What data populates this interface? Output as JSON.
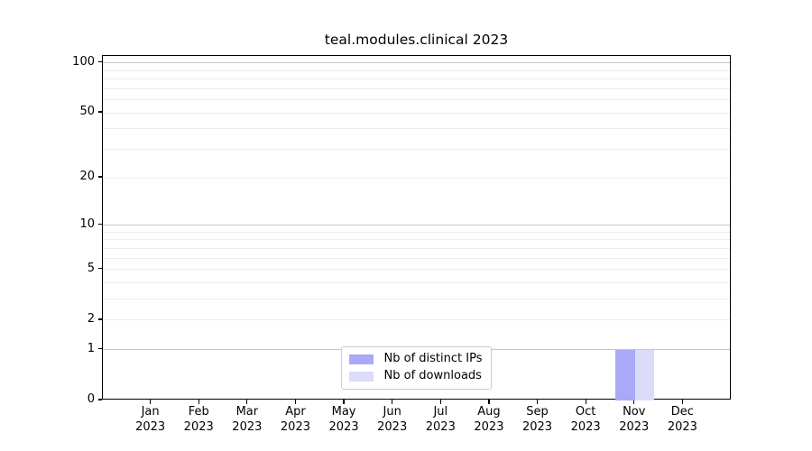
{
  "chart_data": {
    "type": "bar",
    "title": "teal.modules.clinical 2023",
    "categories": [
      "Jan 2023",
      "Feb 2023",
      "Mar 2023",
      "Apr 2023",
      "May 2023",
      "Jun 2023",
      "Jul 2023",
      "Aug 2023",
      "Sep 2023",
      "Oct 2023",
      "Nov 2023",
      "Dec 2023"
    ],
    "series": [
      {
        "name": "Nb of distinct IPs",
        "color": "#a9a9f7",
        "values": [
          0,
          0,
          0,
          0,
          0,
          0,
          0,
          0,
          0,
          0,
          1,
          0
        ]
      },
      {
        "name": "Nb of downloads",
        "color": "#dbdbfa",
        "values": [
          0,
          0,
          0,
          0,
          0,
          0,
          0,
          0,
          0,
          0,
          1,
          0
        ]
      }
    ],
    "xlabel": "",
    "ylabel": "",
    "y_axis": {
      "scale": "log1p",
      "tick_labels": [
        0,
        1,
        2,
        5,
        10,
        20,
        50,
        100
      ],
      "range": [
        0,
        110
      ],
      "major_gridlines": [
        1,
        10,
        100
      ],
      "minor_gridlines": [
        2,
        3,
        4,
        5,
        6,
        7,
        8,
        9,
        20,
        30,
        40,
        50,
        60,
        70,
        80,
        90
      ]
    },
    "legend": {
      "position": "lower center"
    },
    "grid": true,
    "colors": {
      "bar_distinct_ips": "#a9a9f7",
      "bar_downloads": "#dbdbfa",
      "major_grid": "#c6c6c6",
      "minor_grid": "#ededed",
      "axis": "#000000",
      "text": "#000000",
      "background": "#ffffff",
      "legend_border": "#cccccc"
    }
  }
}
